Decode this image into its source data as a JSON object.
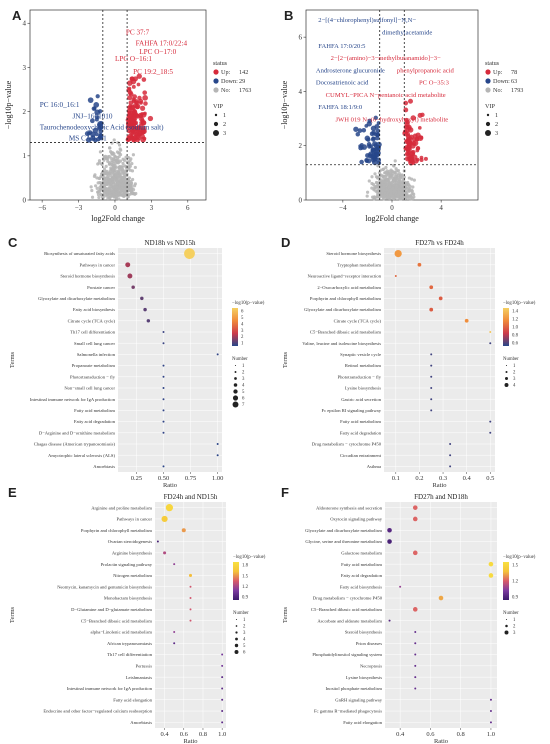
{
  "colors": {
    "up": "#d62a3b",
    "down": "#27468a",
    "no": "#b5b5b5",
    "volcano_bg": "#ffffff",
    "dot_bg": "#ebebeb",
    "grid": "#ffffff",
    "gradient_blue_red": [
      "#27468a",
      "#cc3a4a",
      "#f08a3a",
      "#f5d060"
    ],
    "gradient_purple_yellow": [
      "#3b1a6b",
      "#7d3ba0",
      "#d95a6a",
      "#f5c33a",
      "#f8e040"
    ]
  },
  "panels": [
    "A",
    "B",
    "C",
    "D",
    "E",
    "F"
  ],
  "chart_data": [
    {
      "id": "A",
      "type": "scatter",
      "subtype": "volcano",
      "xlabel": "log2Fold change",
      "ylabel": "−log10p−value",
      "xticks": [
        "−6",
        "−3",
        "0",
        "3",
        "6"
      ],
      "yticks": [
        "0",
        "1",
        "2",
        "3",
        "4"
      ],
      "xlim": [
        -7,
        7.5
      ],
      "ylim": [
        0,
        4.3
      ],
      "vlines": [
        -1,
        1
      ],
      "hline": 1.3,
      "legend": {
        "title": "status",
        "items": [
          {
            "label": "Up:",
            "value": "142",
            "color": "up"
          },
          {
            "label": "Down:",
            "value": "29",
            "color": "down"
          },
          {
            "label": "No:",
            "value": "1763",
            "color": "no"
          }
        ],
        "vip_title": "VIP",
        "vip_items": [
          "1",
          "2",
          "3"
        ]
      },
      "annotations": [
        {
          "text": "PC 37:7",
          "x": 0.9,
          "y": 3.75,
          "color": "up"
        },
        {
          "text": "FAHFA 17:0/22:4",
          "x": 1.7,
          "y": 3.5,
          "color": "up"
        },
        {
          "text": "LPC O−17:0",
          "x": 2.0,
          "y": 3.3,
          "color": "up"
        },
        {
          "text": "LPC O−16:1",
          "x": 0.0,
          "y": 3.15,
          "color": "up"
        },
        {
          "text": "PC 19:2_18:5",
          "x": 1.5,
          "y": 2.85,
          "color": "up"
        },
        {
          "text": "PC 16:0_16:1",
          "x": -6.2,
          "y": 2.1,
          "color": "down"
        },
        {
          "text": "JNJ−1661010",
          "x": -3.5,
          "y": 1.85,
          "color": "down"
        },
        {
          "text": "Taurochenodeoxycholic Acid (sodium salt)",
          "x": -6.2,
          "y": 1.6,
          "color": "down"
        },
        {
          "text": "MS CAR 9:1",
          "x": -3.8,
          "y": 1.35,
          "color": "down"
        }
      ]
    },
    {
      "id": "B",
      "type": "scatter",
      "subtype": "volcano",
      "xlabel": "log2Fold change",
      "ylabel": "−log10p−value",
      "xticks": [
        "−4",
        "0",
        "4"
      ],
      "yticks": [
        "0",
        "2",
        "4",
        "6"
      ],
      "xlim": [
        -7,
        7
      ],
      "ylim": [
        0,
        7
      ],
      "vlines": [
        -1,
        1
      ],
      "hline": 1.3,
      "legend": {
        "title": "status",
        "items": [
          {
            "label": "Up:",
            "value": "78",
            "color": "up"
          },
          {
            "label": "Down:",
            "value": "63",
            "color": "down"
          },
          {
            "label": "No:",
            "value": "1793",
            "color": "no"
          }
        ],
        "vip_title": "VIP",
        "vip_items": [
          "1",
          "2",
          "3"
        ]
      },
      "annotations": [
        {
          "text": "2−[(4−chlorophenyl)sulfonyl]−N,N−",
          "x": -6.0,
          "y": 6.55,
          "color": "down"
        },
        {
          "text": "dimethylacetamide",
          "x": -0.8,
          "y": 6.1,
          "color": "down"
        },
        {
          "text": "FAHFA 17:0/20:5",
          "x": -6.0,
          "y": 5.6,
          "color": "down"
        },
        {
          "text": "2−[2−(amino)−3−methylbutanamido]−3−",
          "x": -5.0,
          "y": 5.15,
          "color": "up"
        },
        {
          "text": "Androsterone glucuronide",
          "x": -6.2,
          "y": 4.7,
          "color": "down"
        },
        {
          "text": "phenylpropanoic acid",
          "x": 0.4,
          "y": 4.7,
          "color": "up"
        },
        {
          "text": "Docosatrienoic acid",
          "x": -6.2,
          "y": 4.25,
          "color": "down"
        },
        {
          "text": "PC O−35:3",
          "x": 2.2,
          "y": 4.25,
          "color": "up"
        },
        {
          "text": "CUMYL−PICA N−pentanoic acid metabolite",
          "x": -5.4,
          "y": 3.8,
          "color": "up"
        },
        {
          "text": "FAHFA 18:1/9:0",
          "x": -6.0,
          "y": 3.35,
          "color": "down"
        },
        {
          "text": "JWH 019 N−(6−hydroxyhexyl) metabolite",
          "x": -4.6,
          "y": 2.9,
          "color": "up"
        }
      ]
    },
    {
      "id": "C",
      "type": "scatter",
      "subtype": "enrichment-dot",
      "title": "ND18h vs ND15h",
      "xlabel": "Ratio",
      "ylabel": "Terms",
      "xticks": [
        "0.25",
        "0.50",
        "0.75",
        "1.00"
      ],
      "xlim": [
        0.08,
        1.04
      ],
      "color_scale": "blue-red",
      "color_title": "−log10(p−value)",
      "color_ticks": [
        "6",
        "5",
        "4",
        "3",
        "2",
        "1"
      ],
      "size_title": "Number",
      "size_ticks": [
        "1",
        "2",
        "3",
        "4",
        "5",
        "6",
        "7"
      ],
      "size_domain": [
        1,
        7
      ],
      "terms": [
        "Biosynthesis of unsaturated fatty acids",
        "Pathways in cancer",
        "Steroid hormone biosynthesis",
        "Prostate cancer",
        "Glyoxylate and dicarboxylate metabolism",
        "Fatty acid biosynthesis",
        "Citrate cycle (TCA cycle)",
        "Th17 cell differentiation",
        "Small cell lung cancer",
        "Salmonella infection",
        "Propanoate metabolism",
        "Photortransduction − fly",
        "Non−small cell lung cancer",
        "Intestinal immune network for IgA production",
        "Fatty acid metabolism",
        "Fatty acid degradation",
        "D−Arginine and D−ornithine metabolism",
        "Chagas disease (American trypanosomiasis)",
        "Amyotrophic lateral sclerosis (ALS)",
        "Amoebiasis"
      ],
      "ratio": [
        0.74,
        0.17,
        0.19,
        0.22,
        0.3,
        0.33,
        0.36,
        0.5,
        0.5,
        1.0,
        0.5,
        0.5,
        0.5,
        0.5,
        0.5,
        0.5,
        0.5,
        1.0,
        1.0,
        0.5
      ],
      "count": [
        7,
        3,
        3,
        2,
        2,
        2,
        2,
        1,
        1,
        1,
        1,
        1,
        1,
        1,
        1,
        1,
        1,
        1,
        1,
        1
      ],
      "neglog10p": [
        6.0,
        2.3,
        2.2,
        1.8,
        1.6,
        1.55,
        1.5,
        1.2,
        1.2,
        1.1,
        1.1,
        1.1,
        1.1,
        1.1,
        1.1,
        1.1,
        1.1,
        1.05,
        1.05,
        1.05
      ],
      "p_domain": [
        1,
        6
      ]
    },
    {
      "id": "D",
      "type": "scatter",
      "subtype": "enrichment-dot",
      "title": "FD27h vs FD24h",
      "xlabel": "Ratio",
      "ylabel": "Terms",
      "xticks": [
        "0.1",
        "0.2",
        "0.3",
        "0.4",
        "0.5"
      ],
      "xlim": [
        0.05,
        0.52
      ],
      "color_scale": "blue-red",
      "color_title": "−log10(p−value)",
      "color_ticks": [
        "1.4",
        "1.2",
        "1.0",
        "0.8",
        "0.6"
      ],
      "size_title": "Number",
      "size_ticks": [
        "1",
        "2",
        "3",
        "4"
      ],
      "size_domain": [
        1,
        4
      ],
      "terms": [
        "Steroid hormone biosynthesis",
        "Tryptophan metabolism",
        "Neuroactive ligand−receptor interaction",
        "2−Oxocarboxylic acid metabolism",
        "Porphyrin and chlorophyll metabolism",
        "Glyoxylate and dicarboxylate metabolism",
        "Citrate cycle (TCA cycle)",
        "C5−Branched dibasic acid metabolism",
        "Valine, leucine and isoleucine biosynthesis",
        "Synaptic vesicle cycle",
        "Retinol metabolism",
        "Phototransduction − fly",
        "Lysine biosynthesis",
        "Gastric acid secretion",
        "Fc epsilon RI signaling pathway",
        "Fatty acid metabolism",
        "Fatty acid degradation",
        "Drug metabolism − cytochrome P450",
        "Circadian entrainment",
        "Asthma"
      ],
      "ratio": [
        0.11,
        0.2,
        0.1,
        0.25,
        0.29,
        0.25,
        0.4,
        0.5,
        0.5,
        0.25,
        0.25,
        0.25,
        0.25,
        0.25,
        0.25,
        0.5,
        0.5,
        0.33,
        0.33,
        0.33
      ],
      "count": [
        4,
        2,
        1,
        2,
        2,
        2,
        2,
        1,
        1,
        1,
        1,
        1,
        1,
        1,
        1,
        1,
        1,
        1,
        1,
        1
      ],
      "neglog10p": [
        1.25,
        1.1,
        1.05,
        1.05,
        1.0,
        1.0,
        1.2,
        1.45,
        0.6,
        0.6,
        0.6,
        0.6,
        0.6,
        0.6,
        0.6,
        0.6,
        0.6,
        0.6,
        0.6,
        0.6
      ],
      "p_domain": [
        0.55,
        1.5
      ]
    },
    {
      "id": "E",
      "type": "scatter",
      "subtype": "enrichment-dot",
      "title": "FD24h and ND15h",
      "xlabel": "Ratio",
      "ylabel": "Terms",
      "xticks": [
        "0.4",
        "0.6",
        "0.8",
        "1.0"
      ],
      "xlim": [
        0.3,
        1.04
      ],
      "color_scale": "purple-yellow",
      "color_title": "−log10(p−value)",
      "color_ticks": [
        "1.8",
        "1.5",
        "1.2",
        "0.9"
      ],
      "size_title": "Number",
      "size_ticks": [
        "1",
        "2",
        "3",
        "4",
        "5",
        "6"
      ],
      "size_domain": [
        1,
        6
      ],
      "terms": [
        "Arginine and proline metabolism",
        "Pathways in cancer",
        "Porphyrin and chlorophyll metabolism",
        "Ovarian steroidogenesis",
        "Arginine biosynthesis",
        "Prolactin signaling pathway",
        "Nitrogen metabolism",
        "Neomycin, kanamycin and gentamicin biosynthesis",
        "Monobactam biosynthesis",
        "D−Glutamine and D−glutamate metabolism",
        "C5−Branched dibasic acid metabolism",
        "alpha−Linolenic acid metabolism",
        "African trypanosomiasis",
        "Th17 cell differentiation",
        "Pertussis",
        "Leishmaniasis",
        "Intestinal immune network for IgA production",
        "Fatty acid elongation",
        "Endocrine and other factor−regulated calcium reabsorption",
        "Amoebiasis"
      ],
      "ratio": [
        0.45,
        0.4,
        0.6,
        0.33,
        0.4,
        0.5,
        0.67,
        0.67,
        0.67,
        0.67,
        0.67,
        0.5,
        0.5,
        1.0,
        1.0,
        1.0,
        1.0,
        1.0,
        1.0,
        1.0
      ],
      "count": [
        6,
        5,
        3,
        1,
        2,
        1,
        2,
        1,
        1,
        1,
        1,
        1,
        1,
        1,
        1,
        1,
        1,
        1,
        1,
        1
      ],
      "neglog10p": [
        1.9,
        1.8,
        1.6,
        0.9,
        1.3,
        1.2,
        1.7,
        1.4,
        1.4,
        1.4,
        1.4,
        1.2,
        1.0,
        1.1,
        1.1,
        1.0,
        1.0,
        1.0,
        1.0,
        1.0
      ],
      "p_domain": [
        0.85,
        2.0
      ]
    },
    {
      "id": "F",
      "type": "scatter",
      "subtype": "enrichment-dot",
      "title": "FD27h and ND18h",
      "xlabel": "Ratio",
      "ylabel": "Terms",
      "xticks": [
        "0.4",
        "0.6",
        "0.8",
        "1.0"
      ],
      "xlim": [
        0.3,
        1.04
      ],
      "color_scale": "purple-yellow",
      "color_title": "−log10(p−value)",
      "color_ticks": [
        "1.5",
        "1.2",
        "0.9"
      ],
      "size_title": "Number",
      "size_ticks": [
        "1",
        "2",
        "3"
      ],
      "size_domain": [
        1,
        3
      ],
      "terms": [
        "Aldosterone synthesis and secretion",
        "Oxytocin signaling pathway",
        "Glyoxylate and dicarboxylate metabolism",
        "Glycine, serine and threonine metabolism",
        "Galactose metabolism",
        "Fatty acid metabolism",
        "Fatty acid degradation",
        "Fatty acid biosynthesis",
        "Drug metabolism − cytochrome P450",
        "C5−Branched dibasic acid metabolism",
        "Ascorbate and aldarate metabolism",
        "Steroid biosynthesis",
        "Prion diseases",
        "Phosphatidylinositol signaling system",
        "Necroptosis",
        "Lysine biosynthesis",
        "Inositol phosphate metabolism",
        "GnRH signaling pathway",
        "Fc gamma R−mediated phagocytosis",
        "Fatty acid elongation"
      ],
      "ratio": [
        0.5,
        0.5,
        0.33,
        0.33,
        0.5,
        1.0,
        1.0,
        0.4,
        0.67,
        0.5,
        0.33,
        0.5,
        0.5,
        0.5,
        0.5,
        0.5,
        0.5,
        1.0,
        1.0,
        1.0
      ],
      "count": [
        2,
        2,
        2,
        2,
        2,
        2,
        2,
        1,
        2,
        2,
        1,
        1,
        1,
        1,
        1,
        1,
        1,
        1,
        1,
        1
      ],
      "neglog10p": [
        1.2,
        1.2,
        0.8,
        0.75,
        1.2,
        1.6,
        1.6,
        1.0,
        1.35,
        1.2,
        0.8,
        0.85,
        0.85,
        0.85,
        0.85,
        0.85,
        0.85,
        0.85,
        0.85,
        0.85
      ],
      "p_domain": [
        0.7,
        1.65
      ]
    }
  ]
}
